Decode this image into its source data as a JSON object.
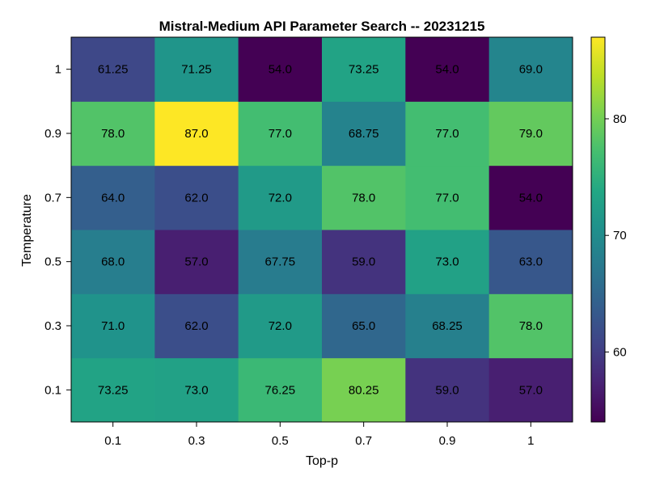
{
  "chart_data": {
    "type": "heatmap",
    "title": "Mistral-Medium API Parameter Search -- 20231215",
    "xlabel": "Top-p",
    "ylabel": "Temperature",
    "x_categories": [
      "0.1",
      "0.3",
      "0.5",
      "0.7",
      "0.9",
      "1"
    ],
    "y_categories": [
      "0.1",
      "0.3",
      "0.5",
      "0.7",
      "0.9",
      "1"
    ],
    "values": [
      [
        73.25,
        73.0,
        76.25,
        80.25,
        59.0,
        57.0
      ],
      [
        71.0,
        62.0,
        72.0,
        65.0,
        68.25,
        78.0
      ],
      [
        68.0,
        57.0,
        67.75,
        59.0,
        73.0,
        63.0
      ],
      [
        64.0,
        62.0,
        72.0,
        78.0,
        77.0,
        54.0
      ],
      [
        78.0,
        87.0,
        77.0,
        68.75,
        77.0,
        79.0
      ],
      [
        61.25,
        71.25,
        54.0,
        73.25,
        54.0,
        69.0
      ]
    ],
    "cell_labels": [
      [
        "73.25",
        "73.0",
        "76.25",
        "80.25",
        "59.0",
        "57.0"
      ],
      [
        "71.0",
        "62.0",
        "72.0",
        "65.0",
        "68.25",
        "78.0"
      ],
      [
        "68.0",
        "57.0",
        "67.75",
        "59.0",
        "73.0",
        "63.0"
      ],
      [
        "64.0",
        "62.0",
        "72.0",
        "78.0",
        "77.0",
        "54.0"
      ],
      [
        "78.0",
        "87.0",
        "77.0",
        "68.75",
        "77.0",
        "79.0"
      ],
      [
        "61.25",
        "71.25",
        "54.0",
        "73.25",
        "54.0",
        "69.0"
      ]
    ],
    "colormap": "viridis",
    "color_range": [
      54.0,
      87.0
    ],
    "colorbar": {
      "ticks": [
        60,
        70,
        80
      ],
      "tick_labels": [
        "60",
        "70",
        "80"
      ]
    },
    "grid": false
  }
}
